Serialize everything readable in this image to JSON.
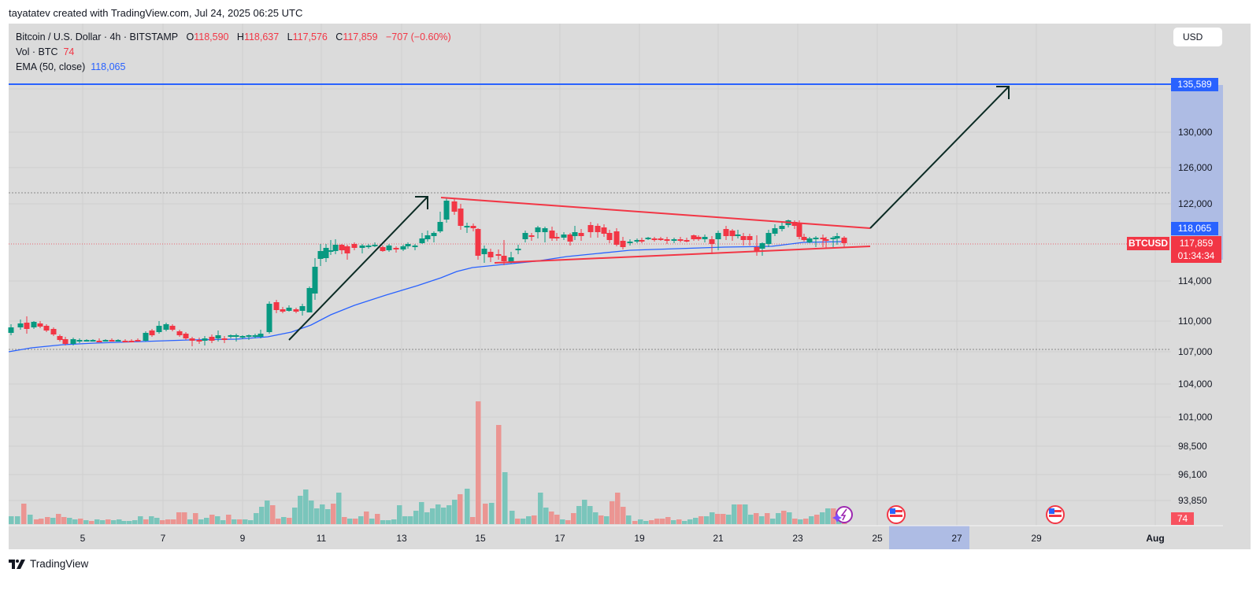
{
  "header": {
    "credit": "tayatatev created with TradingView.com, Jul 24, 2025 06:25 UTC"
  },
  "legend": {
    "symbol": "Bitcoin / U.S. Dollar · 4h · BITSTAMP",
    "o_label": "O",
    "o": "118,590",
    "h_label": "H",
    "h": "118,637",
    "l_label": "L",
    "l": "117,576",
    "c_label": "C",
    "c": "117,859",
    "change": "−707 (−0.60%)",
    "vol_label": "Vol · BTC",
    "vol": "74",
    "ema_label": "EMA (50, close)",
    "ema": "118,065"
  },
  "currency": "USD",
  "price_axis": {
    "ticks": [
      "130,000",
      "126,000",
      "122,000",
      "114,000",
      "110,000",
      "107,000",
      "104,000",
      "101,000",
      "98,500",
      "96,100",
      "93,850"
    ],
    "target_tag": "135,589",
    "ema_tag": "118,065",
    "last_price_tag": "117,859",
    "countdown": "01:34:34",
    "symbol_tag": "BTCUSD",
    "volume_tag": "74"
  },
  "time_axis": {
    "ticks": [
      "5",
      "7",
      "9",
      "11",
      "13",
      "15",
      "17",
      "19",
      "21",
      "23",
      "25",
      "27",
      "29",
      "Aug"
    ]
  },
  "footer": {
    "brand": "TradingView"
  },
  "colors": {
    "up": "#089981",
    "down": "#f23645",
    "ema": "#2962ff",
    "target_line": "#2962ff",
    "triangle": "#f23645",
    "arrow": "#0b2b24"
  },
  "chart_data": {
    "type": "candlestick",
    "title": "Bitcoin / U.S. Dollar · 4h · BITSTAMP",
    "timeframe": "4h",
    "xlabel": "",
    "ylabel": "USD",
    "x_ticks": [
      "5",
      "7",
      "9",
      "11",
      "13",
      "15",
      "17",
      "19",
      "21",
      "23",
      "25",
      "27",
      "29",
      "Aug"
    ],
    "y_ticks": [
      130000,
      126000,
      122000,
      114000,
      110000,
      107000,
      104000,
      101000,
      98500,
      96100,
      93850
    ],
    "ylim": [
      92000,
      140000
    ],
    "last": {
      "open": 118590,
      "high": 118637,
      "low": 117576,
      "close": 117859,
      "change": -707,
      "change_pct": -0.6
    },
    "ema50": 118065,
    "annotations": {
      "target_level": 135589,
      "resistance_dotted": 123200,
      "support_dotted": 107300,
      "triangle_upper": [
        [
          14.1,
          122900
        ],
        [
          24.8,
          119000
        ]
      ],
      "triangle_lower": [
        [
          15.5,
          116000
        ],
        [
          24.8,
          117300
        ]
      ],
      "arrow_1": [
        [
          10.2,
          108300
        ],
        [
          13.7,
          123000
        ]
      ],
      "arrow_2": [
        [
          24.8,
          119000
        ],
        [
          28.4,
          135589
        ]
      ]
    },
    "volume_series": {
      "name": "Vol · BTC",
      "last": 74,
      "spikes": [
        {
          "x": "15",
          "value": "largest"
        },
        {
          "x": "15.5",
          "value": "second largest"
        }
      ]
    }
  }
}
